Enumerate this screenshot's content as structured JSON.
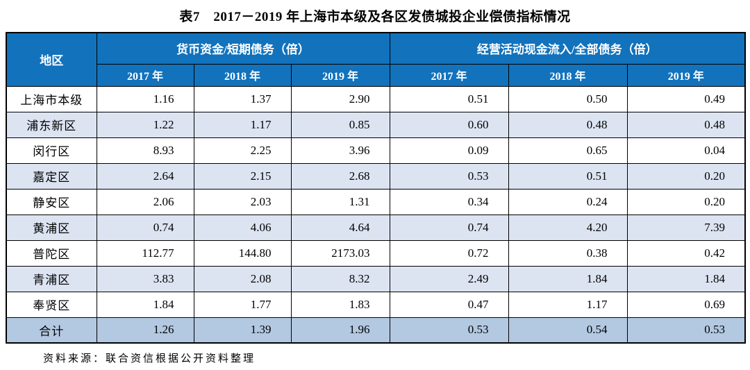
{
  "title": "表7　2017－2019 年上海市本级及各区发债城投企业偿债指标情况",
  "source_note": "资料来源：联合资信根据公开资料整理",
  "colors": {
    "header_bg": "#1272bc",
    "header_text": "#ffffff",
    "row_alt_bg": "#dce4f2",
    "row_total_bg": "#b3c8e1",
    "border": "#000000"
  },
  "table": {
    "region_column_header": "地区",
    "column_groups": [
      {
        "label": "货币资金/短期债务（倍）",
        "years": [
          "2017 年",
          "2018 年",
          "2019 年"
        ]
      },
      {
        "label": "经营活动现金流入/全部债务（倍）",
        "years": [
          "2017 年",
          "2018 年",
          "2019 年"
        ]
      }
    ],
    "rows": [
      {
        "region": "上海市本级",
        "values": [
          "1.16",
          "1.37",
          "2.90",
          "0.51",
          "0.50",
          "0.49"
        ],
        "variant": "plain"
      },
      {
        "region": "浦东新区",
        "values": [
          "1.22",
          "1.17",
          "0.85",
          "0.60",
          "0.48",
          "0.48"
        ],
        "variant": "alt"
      },
      {
        "region": "闵行区",
        "values": [
          "8.93",
          "2.25",
          "3.96",
          "0.09",
          "0.65",
          "0.04"
        ],
        "variant": "plain"
      },
      {
        "region": "嘉定区",
        "values": [
          "2.64",
          "2.15",
          "2.68",
          "0.53",
          "0.51",
          "0.20"
        ],
        "variant": "alt"
      },
      {
        "region": "静安区",
        "values": [
          "2.06",
          "2.03",
          "1.31",
          "0.34",
          "0.24",
          "0.20"
        ],
        "variant": "plain"
      },
      {
        "region": "黄浦区",
        "values": [
          "0.74",
          "4.06",
          "4.64",
          "0.74",
          "4.20",
          "7.39"
        ],
        "variant": "alt"
      },
      {
        "region": "普陀区",
        "values": [
          "112.77",
          "144.80",
          "2173.03",
          "0.72",
          "0.38",
          "0.42"
        ],
        "variant": "plain"
      },
      {
        "region": "青浦区",
        "values": [
          "3.83",
          "2.08",
          "8.32",
          "2.49",
          "1.84",
          "1.84"
        ],
        "variant": "alt"
      },
      {
        "region": "奉贤区",
        "values": [
          "1.84",
          "1.77",
          "1.83",
          "0.47",
          "1.17",
          "0.69"
        ],
        "variant": "plain"
      },
      {
        "region": "合计",
        "values": [
          "1.26",
          "1.39",
          "1.96",
          "0.53",
          "0.54",
          "0.53"
        ],
        "variant": "total"
      }
    ]
  }
}
